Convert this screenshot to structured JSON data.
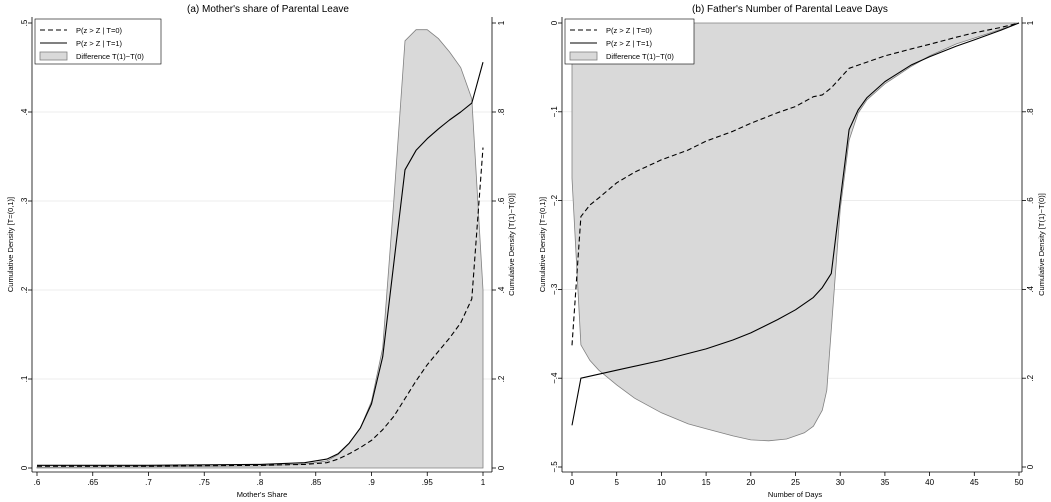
{
  "chart_data": [
    {
      "type": "line",
      "title": "(a) Mother's share of Parental Leave",
      "xlabel": "Mother's Share",
      "ylabel": "Cumulative Density [T=(0,1)]",
      "ylabel_right": "Cumulative Density [T(1)−T(0)]",
      "xlim": [
        0.6,
        1.0
      ],
      "ylim": [
        0,
        0.5
      ],
      "ylim_right": [
        0,
        1
      ],
      "xticks": [
        0.6,
        0.65,
        0.7,
        0.75,
        0.8,
        0.85,
        0.9,
        0.95,
        1.0
      ],
      "xtick_labels": [
        ".6",
        ".65",
        ".7",
        ".75",
        ".8",
        ".85",
        ".9",
        ".95",
        "1"
      ],
      "yticks": [
        0,
        0.1,
        0.2,
        0.3,
        0.4,
        0.5
      ],
      "ytick_labels": [
        "0",
        ".1",
        ".2",
        ".3",
        ".4",
        ".5"
      ],
      "yticks_right": [
        0,
        0.2,
        0.4,
        0.6,
        0.8,
        1
      ],
      "ytick_labels_right": [
        "0",
        ".2",
        ".4",
        ".6",
        ".8",
        "1"
      ],
      "grid": true,
      "legend": "top-left",
      "series": [
        {
          "name": "P(z > Z | T=0)",
          "style": "dashed",
          "color": "#000000",
          "axis": "left",
          "x": [
            0.6,
            0.7,
            0.8,
            0.84,
            0.86,
            0.87,
            0.88,
            0.89,
            0.9,
            0.91,
            0.92,
            0.93,
            0.94,
            0.95,
            0.96,
            0.97,
            0.98,
            0.99,
            1.0
          ],
          "y": [
            0.002,
            0.002,
            0.003,
            0.004,
            0.006,
            0.01,
            0.016,
            0.023,
            0.031,
            0.043,
            0.058,
            0.078,
            0.098,
            0.116,
            0.131,
            0.146,
            0.163,
            0.19,
            0.36
          ]
        },
        {
          "name": "P(z > Z | T=1)",
          "style": "solid",
          "color": "#000000",
          "axis": "left",
          "x": [
            0.6,
            0.7,
            0.8,
            0.84,
            0.86,
            0.87,
            0.88,
            0.89,
            0.9,
            0.91,
            0.92,
            0.93,
            0.94,
            0.95,
            0.96,
            0.97,
            0.98,
            0.99,
            1.0
          ],
          "y": [
            0.003,
            0.003,
            0.004,
            0.006,
            0.01,
            0.016,
            0.028,
            0.045,
            0.072,
            0.125,
            0.23,
            0.335,
            0.357,
            0.37,
            0.381,
            0.391,
            0.4,
            0.41,
            0.456
          ]
        },
        {
          "name": "Difference T(1)−T(0)",
          "style": "area",
          "color": "#d9d9d9",
          "edge_color": "#808080",
          "axis": "right",
          "fill_to": 0,
          "x": [
            0.6,
            0.7,
            0.8,
            0.84,
            0.86,
            0.87,
            0.88,
            0.89,
            0.9,
            0.91,
            0.92,
            0.93,
            0.94,
            0.95,
            0.96,
            0.97,
            0.98,
            0.99,
            1.0
          ],
          "y": [
            0.002,
            0.003,
            0.005,
            0.009,
            0.016,
            0.03,
            0.055,
            0.09,
            0.15,
            0.27,
            0.6,
            0.96,
            0.985,
            0.985,
            0.965,
            0.935,
            0.9,
            0.83,
            0.4
          ]
        }
      ]
    },
    {
      "type": "line",
      "title": "(b) Father's Number of Parental Leave Days",
      "xlabel": "Number of Days",
      "ylabel": "Cumulative Density [T=(0,1)]",
      "ylabel_right": "Cumulative Density [T(1)−T(0)]",
      "xlim": [
        0,
        50
      ],
      "ylim": [
        -0.5,
        0
      ],
      "ylim_right": [
        0,
        1
      ],
      "xticks": [
        0,
        5,
        10,
        15,
        20,
        25,
        30,
        35,
        40,
        45,
        50
      ],
      "xtick_labels": [
        "0",
        "5",
        "10",
        "15",
        "20",
        "25",
        "30",
        "35",
        "40",
        "45",
        "50"
      ],
      "yticks": [
        -0.5,
        -0.4,
        -0.3,
        -0.2,
        -0.1,
        0
      ],
      "ytick_labels": [
        "−.5",
        "−.4",
        "−.3",
        "−.2",
        "−.1",
        "0"
      ],
      "yticks_right": [
        0,
        0.2,
        0.4,
        0.6,
        0.8,
        1
      ],
      "ytick_labels_right": [
        "0",
        ".2",
        ".4",
        ".6",
        ".8",
        "1"
      ],
      "grid": true,
      "legend": "top-left",
      "series": [
        {
          "name": "P(z > Z | T=0)",
          "style": "dashed",
          "color": "#000000",
          "axis": "left",
          "x": [
            0,
            1,
            2,
            3,
            5,
            7,
            10,
            13,
            15,
            18,
            20,
            23,
            25,
            27,
            28,
            29,
            30,
            31,
            33,
            35,
            38,
            40,
            43,
            45,
            48,
            50
          ],
          "y": [
            -0.363,
            -0.218,
            -0.205,
            -0.197,
            -0.18,
            -0.168,
            -0.154,
            -0.143,
            -0.133,
            -0.122,
            -0.113,
            -0.101,
            -0.094,
            -0.083,
            -0.081,
            -0.073,
            -0.062,
            -0.051,
            -0.044,
            -0.037,
            -0.029,
            -0.024,
            -0.016,
            -0.011,
            -0.005,
            0
          ]
        },
        {
          "name": "P(z > Z | T=1)",
          "style": "solid",
          "color": "#000000",
          "axis": "left",
          "x": [
            0,
            1,
            5,
            10,
            15,
            18,
            20,
            23,
            25,
            27,
            28,
            29,
            30,
            31,
            32,
            33,
            35,
            38,
            40,
            43,
            45,
            48,
            50
          ],
          "y": [
            -0.453,
            -0.4,
            -0.391,
            -0.38,
            -0.367,
            -0.357,
            -0.349,
            -0.334,
            -0.323,
            -0.309,
            -0.298,
            -0.282,
            -0.2,
            -0.12,
            -0.098,
            -0.084,
            -0.066,
            -0.047,
            -0.038,
            -0.026,
            -0.019,
            -0.008,
            0
          ]
        },
        {
          "name": "Difference T(1)−T(0)",
          "style": "area",
          "color": "#d9d9d9",
          "edge_color": "#808080",
          "axis": "right",
          "fill_to": 1,
          "x": [
            0,
            1,
            2,
            3,
            5,
            7,
            10,
            13,
            15,
            18,
            20,
            22,
            24,
            26,
            27,
            28,
            28.5,
            29,
            30,
            31,
            32,
            33,
            35,
            38,
            40,
            43,
            45,
            48,
            50
          ],
          "y": [
            0.65,
            0.275,
            0.24,
            0.218,
            0.185,
            0.155,
            0.122,
            0.097,
            0.086,
            0.07,
            0.061,
            0.059,
            0.063,
            0.077,
            0.092,
            0.128,
            0.173,
            0.31,
            0.58,
            0.736,
            0.797,
            0.827,
            0.863,
            0.903,
            0.926,
            0.953,
            0.966,
            0.986,
            1.0
          ]
        }
      ]
    }
  ]
}
